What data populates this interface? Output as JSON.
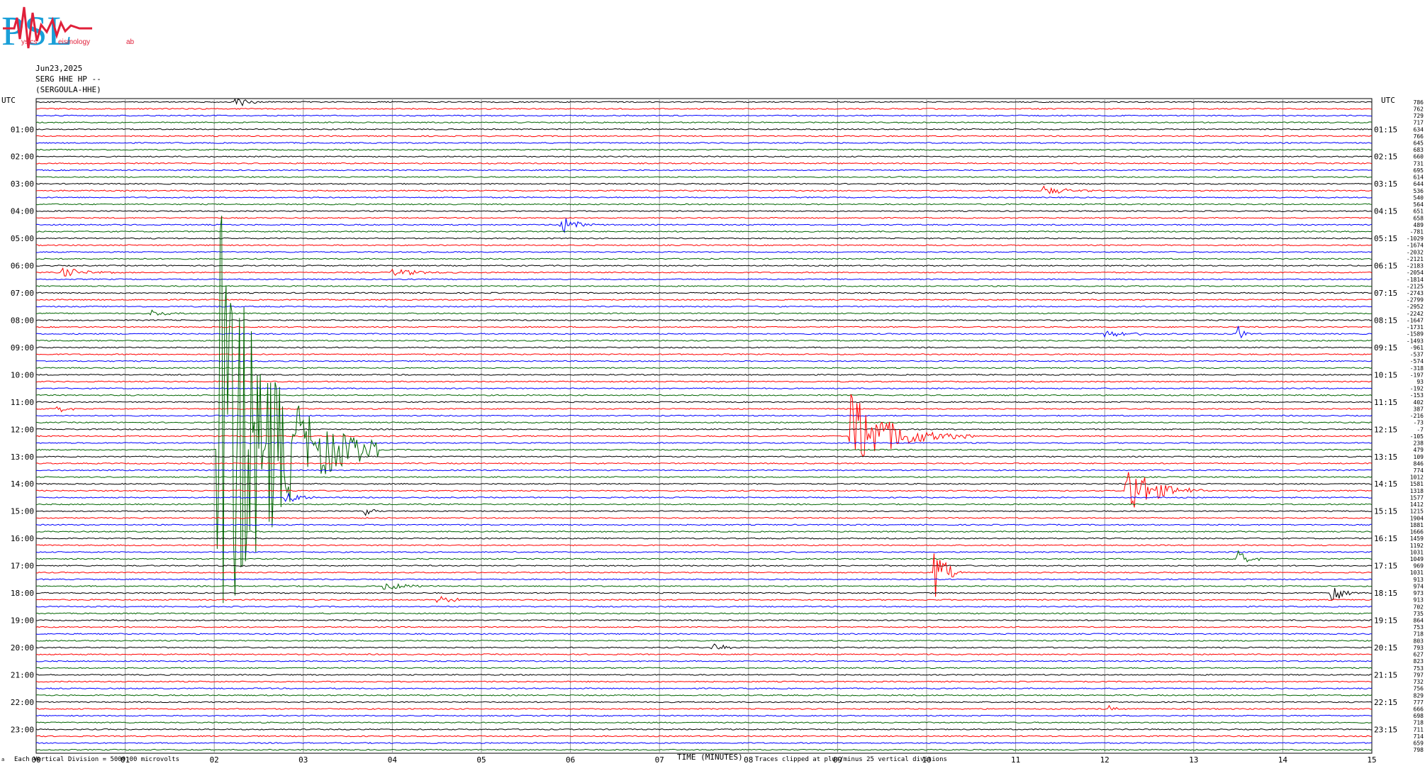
{
  "logo": {
    "letters": "PSL",
    "words": [
      "ysics",
      "eismology",
      "ab"
    ]
  },
  "header": {
    "date": "Jun23,2025",
    "channel": "SERG HHE HP --",
    "station": "(SERGOULA-HHE)"
  },
  "axis": {
    "left_title": "UTC",
    "right_title": "UTC",
    "xlabel": "TIME (MINUTES)"
  },
  "footer": {
    "left_mark": "a",
    "scale_note": "Each Vertical Division = 5000.00 microvolts",
    "clip_note": "Traces clipped at plus/minus 25 vertical divisions"
  },
  "colors": [
    "#000000",
    "#ff0000",
    "#0000ff",
    "#006400"
  ],
  "chart_data": {
    "type": "line",
    "title": "Jun23,2025 SERG HHE HP -- (SERGOULA-HHE)",
    "xlabel": "TIME (MINUTES)",
    "xlim": [
      0,
      15
    ],
    "x_ticks": [
      "00",
      "01",
      "02",
      "03",
      "04",
      "05",
      "06",
      "07",
      "08",
      "09",
      "10",
      "11",
      "12",
      "13",
      "14",
      "15"
    ],
    "left_hour_labels": [
      "01:00",
      "02:00",
      "03:00",
      "04:00",
      "05:00",
      "06:00",
      "07:00",
      "08:00",
      "09:00",
      "10:00",
      "11:00",
      "12:00",
      "13:00",
      "14:00",
      "15:00",
      "16:00",
      "17:00",
      "18:00",
      "19:00",
      "20:00",
      "21:00",
      "22:00",
      "23:00"
    ],
    "right_hour_labels": [
      "01:15",
      "02:15",
      "03:15",
      "04:15",
      "05:15",
      "06:15",
      "07:15",
      "08:15",
      "09:15",
      "10:15",
      "11:15",
      "12:15",
      "13:15",
      "14:15",
      "15:15",
      "16:15",
      "17:15",
      "18:15",
      "19:15",
      "20:15",
      "21:15",
      "22:15",
      "23:15"
    ],
    "trace_minutes": 15,
    "trace_offsets": [
      "786",
      "762",
      "729",
      "717",
      "634",
      "766",
      "645",
      "683",
      "660",
      "731",
      "695",
      "614",
      "644",
      "536",
      "540",
      "564",
      "651",
      "658",
      "489",
      "-781",
      "-1029",
      "-1674",
      "-2032",
      "-2121",
      "-2183",
      "-2054",
      "-1814",
      "-2125",
      "-2743",
      "-2799",
      "-2952",
      "-2242",
      "-1647",
      "-1731",
      "-1589",
      "-1493",
      "-961",
      "-537",
      "-574",
      "-318",
      "-197",
      "93",
      "-192",
      "-153",
      "402",
      "387",
      "-216",
      "-73",
      "-7",
      "-105",
      "238",
      "479",
      "109",
      "846",
      "774",
      "1012",
      "1581",
      "1318",
      "1577",
      "1412",
      "1215",
      "1904",
      "1881",
      "1666",
      "1459",
      "1192",
      "1031",
      "1049",
      "969",
      "1031",
      "913",
      "974",
      "973",
      "913",
      "702",
      "735",
      "864",
      "753",
      "718",
      "803",
      "793",
      "627",
      "823",
      "753",
      "797",
      "732",
      "756",
      "829",
      "777",
      "666",
      "698",
      "718",
      "711",
      "714",
      "659",
      "798"
    ],
    "events": [
      {
        "trace": 0,
        "minute": 2.25,
        "amp": 2.0,
        "dur": 0.45
      },
      {
        "trace": 18,
        "minute": 5.9,
        "amp": 3.0,
        "dur": 0.5
      },
      {
        "trace": 13,
        "minute": 11.3,
        "amp": 1.6,
        "dur": 0.8
      },
      {
        "trace": 25,
        "minute": 0.3,
        "amp": 1.5,
        "dur": 0.8
      },
      {
        "trace": 25,
        "minute": 4.0,
        "amp": 1.3,
        "dur": 0.9
      },
      {
        "trace": 31,
        "minute": 1.3,
        "amp": 1.6,
        "dur": 0.5
      },
      {
        "trace": 34,
        "minute": 12.0,
        "amp": 1.0,
        "dur": 1.2
      },
      {
        "trace": 34,
        "minute": 13.5,
        "amp": 2.5,
        "dur": 0.2
      },
      {
        "trace": 45,
        "minute": 0.25,
        "amp": 1.5,
        "dur": 0.3
      },
      {
        "trace": 49,
        "minute": 9.15,
        "amp": 13.0,
        "dur": 1.4
      },
      {
        "trace": 51,
        "minute": 2.05,
        "amp": 75.0,
        "dur": 1.8
      },
      {
        "trace": 57,
        "minute": 12.25,
        "amp": 9.0,
        "dur": 0.9
      },
      {
        "trace": 58,
        "minute": 2.8,
        "amp": 3.0,
        "dur": 0.4
      },
      {
        "trace": 60,
        "minute": 3.7,
        "amp": 2.0,
        "dur": 0.2
      },
      {
        "trace": 67,
        "minute": 13.5,
        "amp": 2.5,
        "dur": 0.4
      },
      {
        "trace": 69,
        "minute": 10.1,
        "amp": 13.0,
        "dur": 0.3
      },
      {
        "trace": 71,
        "minute": 3.9,
        "amp": 1.2,
        "dur": 1.0
      },
      {
        "trace": 72,
        "minute": 14.55,
        "amp": 4.0,
        "dur": 0.35
      },
      {
        "trace": 73,
        "minute": 4.5,
        "amp": 1.2,
        "dur": 0.6
      },
      {
        "trace": 80,
        "minute": 7.6,
        "amp": 2.0,
        "dur": 0.4
      },
      {
        "trace": 89,
        "minute": 12.05,
        "amp": 1.5,
        "dur": 0.2
      }
    ]
  }
}
